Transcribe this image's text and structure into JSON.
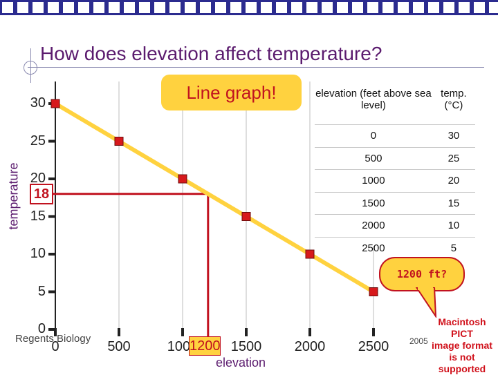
{
  "slide": {
    "title": "How does elevation affect temperature?",
    "callout": "Line graph!",
    "footer_left": "Regents Biology",
    "footer_right": "2005",
    "bubble": "1200 ft?",
    "pict_line1": "Macintosh PICT",
    "pict_line2": "image format",
    "pict_line3": "is not supported",
    "colors": {
      "line": "#ffd23f",
      "marker": "#d7191c",
      "highlight": "#c1121f",
      "title": "#5b1b6e"
    }
  },
  "table": {
    "headers": [
      "elevation (feet above sea level)",
      "temp. (°C)"
    ],
    "rows": [
      [
        "0",
        "30"
      ],
      [
        "500",
        "25"
      ],
      [
        "1000",
        "20"
      ],
      [
        "1500",
        "15"
      ],
      [
        "2000",
        "10"
      ],
      [
        "2500",
        "5"
      ]
    ]
  },
  "chart_data": {
    "type": "line",
    "title": "",
    "xlabel": "elevation",
    "ylabel": "temperature",
    "x": [
      0,
      500,
      1000,
      1500,
      2000,
      2500
    ],
    "series": [
      {
        "values": [
          30,
          25,
          20,
          15,
          10,
          5
        ]
      }
    ],
    "xticks": [
      "0",
      "500",
      "1000",
      "1500",
      "2000",
      "2500"
    ],
    "yticks": [
      "0",
      "5",
      "10",
      "15",
      "20",
      "25",
      "30"
    ],
    "xlim": [
      0,
      2500
    ],
    "ylim": [
      0,
      30
    ],
    "grid": true,
    "annotation": {
      "x": 1200,
      "y": 18,
      "x_label": "1200",
      "y_label": "18"
    }
  }
}
